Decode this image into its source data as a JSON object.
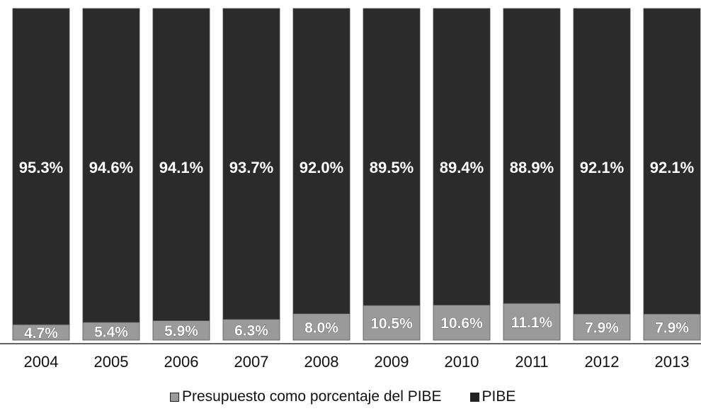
{
  "chart_data": {
    "type": "bar",
    "stacked": true,
    "percent_stacked": true,
    "categories": [
      "2004",
      "2005",
      "2006",
      "2007",
      "2008",
      "2009",
      "2010",
      "2011",
      "2012",
      "2013"
    ],
    "series": [
      {
        "name": "Presupuesto como porcentaje del PIBE",
        "values": [
          4.7,
          5.4,
          5.9,
          6.3,
          8.0,
          10.5,
          10.6,
          11.1,
          7.9,
          7.9
        ],
        "labels": [
          "4.7%",
          "5.4%",
          "5.9%",
          "6.3%",
          "8.0%",
          "10.5%",
          "10.6%",
          "11.1%",
          "7.9%",
          "7.9%"
        ],
        "color": "#9a9a9a"
      },
      {
        "name": "PIBE",
        "values": [
          95.3,
          94.6,
          94.1,
          93.7,
          92.0,
          89.5,
          89.4,
          88.9,
          92.1,
          92.1
        ],
        "labels": [
          "95.3%",
          "94.6%",
          "94.1%",
          "93.7%",
          "92.0%",
          "89.5%",
          "89.4%",
          "88.9%",
          "92.1%",
          "92.1%"
        ],
        "color": "#2b2b2b"
      }
    ],
    "ylim": [
      0,
      100
    ],
    "grid": false,
    "legend_position": "bottom"
  }
}
